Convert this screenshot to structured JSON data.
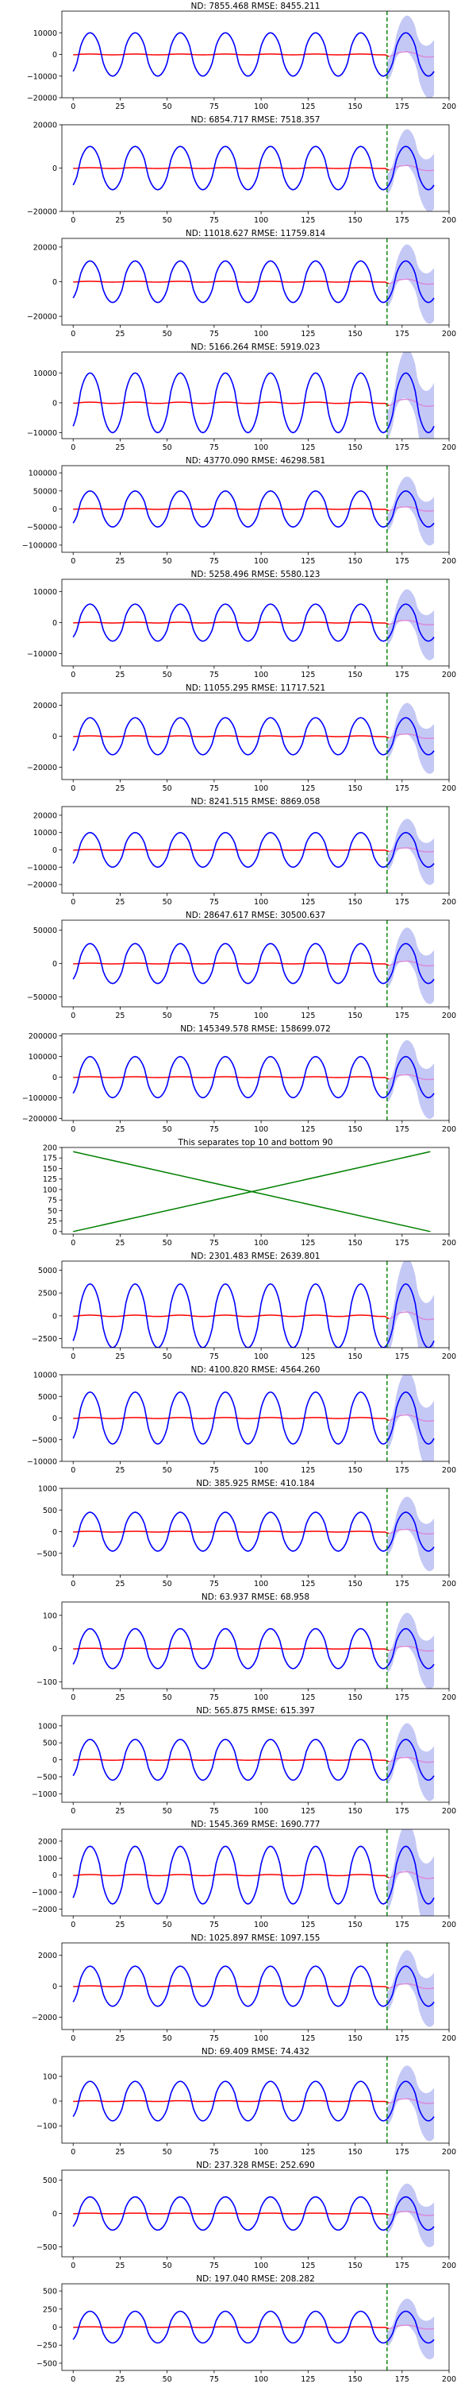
{
  "figure": {
    "colors": {
      "history": "#0000ff",
      "forecast": "#0000cc",
      "band": "#b0b6f2",
      "median": "#ff0000",
      "median_forecast": "#d98ad9",
      "split": "#008000",
      "cross": "#008000"
    }
  },
  "chart_data": [
    {
      "type": "line",
      "title": "ND:  7855.468 RMSE:  8455.211",
      "amp": 10000,
      "ylim": [
        -20000,
        20000
      ],
      "yticks": [
        -20000,
        -10000,
        0,
        10000
      ],
      "ytick_labels": [
        "−20000",
        "−10000",
        "0",
        "10000"
      ],
      "xlim": [
        -6,
        200
      ],
      "xticks": [
        0,
        25,
        50,
        75,
        100,
        125,
        150,
        175,
        200
      ],
      "split_x": 167,
      "series": [
        {
          "values_note": "periodic signal, period 24"
        }
      ]
    },
    {
      "type": "line",
      "title": "ND:  6854.717 RMSE:  7518.357",
      "amp": 10000,
      "ylim": [
        -20000,
        20000
      ],
      "yticks": [
        -20000,
        0,
        20000
      ],
      "ytick_labels": [
        "−20000",
        "0",
        "20000"
      ],
      "xlim": [
        -6,
        200
      ],
      "xticks": [
        0,
        25,
        50,
        75,
        100,
        125,
        150,
        175,
        200
      ],
      "split_x": 167
    },
    {
      "type": "line",
      "title": "ND:  11018.627 RMSE:  11759.814",
      "amp": 12000,
      "ylim": [
        -25000,
        25000
      ],
      "yticks": [
        -20000,
        0,
        20000
      ],
      "ytick_labels": [
        "−20000",
        "0",
        "20000"
      ],
      "xlim": [
        -6,
        200
      ],
      "xticks": [
        0,
        25,
        50,
        75,
        100,
        125,
        150,
        175,
        200
      ],
      "split_x": 167
    },
    {
      "type": "line",
      "title": "ND:  5166.264 RMSE:  5919.023",
      "amp": 10000,
      "ylim": [
        -12000,
        17000
      ],
      "yticks": [
        -10000,
        0,
        10000
      ],
      "ytick_labels": [
        "−10000",
        "0",
        "10000"
      ],
      "xlim": [
        -6,
        200
      ],
      "xticks": [
        0,
        25,
        50,
        75,
        100,
        125,
        150,
        175,
        200
      ],
      "split_x": 167
    },
    {
      "type": "line",
      "title": "ND:  43770.090 RMSE:  46298.581",
      "amp": 50000,
      "ylim": [
        -120000,
        120000
      ],
      "yticks": [
        -100000,
        -50000,
        0,
        50000,
        100000
      ],
      "ytick_labels": [
        "−100000",
        "−50000",
        "0",
        "50000",
        "100000"
      ],
      "xlim": [
        -6,
        200
      ],
      "xticks": [
        0,
        25,
        50,
        75,
        100,
        125,
        150,
        175,
        200
      ],
      "split_x": 167
    },
    {
      "type": "line",
      "title": "ND:  5258.496 RMSE:  5580.123",
      "amp": 6000,
      "ylim": [
        -14000,
        14000
      ],
      "yticks": [
        -10000,
        0,
        10000
      ],
      "ytick_labels": [
        "−10000",
        "0",
        "10000"
      ],
      "xlim": [
        -6,
        200
      ],
      "xticks": [
        0,
        25,
        50,
        75,
        100,
        125,
        150,
        175,
        200
      ],
      "split_x": 167
    },
    {
      "type": "line",
      "title": "ND:  11055.295 RMSE:  11717.521",
      "amp": 12000,
      "ylim": [
        -28000,
        28000
      ],
      "yticks": [
        -20000,
        0,
        20000
      ],
      "ytick_labels": [
        "−20000",
        "0",
        "20000"
      ],
      "xlim": [
        -6,
        200
      ],
      "xticks": [
        0,
        25,
        50,
        75,
        100,
        125,
        150,
        175,
        200
      ],
      "split_x": 167
    },
    {
      "type": "line",
      "title": "ND:  8241.515 RMSE:  8869.058",
      "amp": 10000,
      "ylim": [
        -25000,
        25000
      ],
      "yticks": [
        -20000,
        -10000,
        0,
        10000,
        20000
      ],
      "ytick_labels": [
        "−20000",
        "−10000",
        "0",
        "10000",
        "20000"
      ],
      "xlim": [
        -6,
        200
      ],
      "xticks": [
        0,
        25,
        50,
        75,
        100,
        125,
        150,
        175,
        200
      ],
      "split_x": 167
    },
    {
      "type": "line",
      "title": "ND:  28647.617 RMSE:  30500.637",
      "amp": 30000,
      "ylim": [
        -65000,
        65000
      ],
      "yticks": [
        -50000,
        0,
        50000
      ],
      "ytick_labels": [
        "−50000",
        "0",
        "50000"
      ],
      "xlim": [
        -6,
        200
      ],
      "xticks": [
        0,
        25,
        50,
        75,
        100,
        125,
        150,
        175,
        200
      ],
      "split_x": 167
    },
    {
      "type": "line",
      "title": "ND:  145349.578 RMSE:  158699.072",
      "amp": 100000,
      "ylim": [
        -210000,
        210000
      ],
      "yticks": [
        -200000,
        -100000,
        0,
        100000,
        200000
      ],
      "ytick_labels": [
        "−200000",
        "−100000",
        "0",
        "100000",
        "200000"
      ],
      "xlim": [
        -6,
        200
      ],
      "xticks": [
        0,
        25,
        50,
        75,
        100,
        125,
        150,
        175,
        200
      ],
      "split_x": 167
    },
    {
      "type": "cross",
      "title": "This separates top 10 and bottom 90",
      "ylim": [
        -6,
        200
      ],
      "yticks": [
        0,
        25,
        50,
        75,
        100,
        125,
        150,
        175,
        200
      ],
      "ytick_labels": [
        "0",
        "25",
        "50",
        "75",
        "100",
        "125",
        "150",
        "175",
        "200"
      ],
      "xlim": [
        -6,
        200
      ],
      "xticks": [
        0,
        25,
        50,
        75,
        100,
        125,
        150,
        175,
        200
      ],
      "lines": [
        {
          "x": [
            0,
            190
          ],
          "y": [
            0,
            190
          ]
        },
        {
          "x": [
            0,
            190
          ],
          "y": [
            190,
            0
          ]
        }
      ]
    },
    {
      "type": "line",
      "title": "ND:  2301.483 RMSE:  2639.801",
      "amp": 3500,
      "ylim": [
        -3500,
        6000
      ],
      "yticks": [
        -2500,
        0,
        2500,
        5000
      ],
      "ytick_labels": [
        "−2500",
        "0",
        "2500",
        "5000"
      ],
      "xlim": [
        -6,
        200
      ],
      "xticks": [
        0,
        25,
        50,
        75,
        100,
        125,
        150,
        175,
        200
      ],
      "split_x": 167
    },
    {
      "type": "line",
      "title": "ND:  4100.820 RMSE:  4564.260",
      "amp": 6000,
      "ylim": [
        -10000,
        10000
      ],
      "yticks": [
        -10000,
        -5000,
        0,
        5000,
        10000
      ],
      "ytick_labels": [
        "−10000",
        "−5000",
        "0",
        "5000",
        "10000"
      ],
      "xlim": [
        -6,
        200
      ],
      "xticks": [
        0,
        25,
        50,
        75,
        100,
        125,
        150,
        175,
        200
      ],
      "split_x": 167
    },
    {
      "type": "line",
      "title": "ND:  385.925 RMSE:  410.184",
      "amp": 450,
      "ylim": [
        -1000,
        1000
      ],
      "yticks": [
        -500,
        0,
        500,
        1000
      ],
      "ytick_labels": [
        "−500",
        "0",
        "500",
        "1000"
      ],
      "xlim": [
        -6,
        200
      ],
      "xticks": [
        0,
        25,
        50,
        75,
        100,
        125,
        150,
        175,
        200
      ],
      "split_x": 167
    },
    {
      "type": "line",
      "title": "ND:  63.937 RMSE:  68.958",
      "amp": 60,
      "ylim": [
        -120,
        140
      ],
      "yticks": [
        -100,
        0,
        100
      ],
      "ytick_labels": [
        "−100",
        "0",
        "100"
      ],
      "xlim": [
        -6,
        200
      ],
      "xticks": [
        0,
        25,
        50,
        75,
        100,
        125,
        150,
        175,
        200
      ],
      "split_x": 167
    },
    {
      "type": "line",
      "title": "ND:  565.875 RMSE:  615.397",
      "amp": 600,
      "ylim": [
        -1250,
        1300
      ],
      "yticks": [
        -1000,
        -500,
        0,
        500,
        1000
      ],
      "ytick_labels": [
        "−1000",
        "−500",
        "0",
        "500",
        "1000"
      ],
      "xlim": [
        -6,
        200
      ],
      "xticks": [
        0,
        25,
        50,
        75,
        100,
        125,
        150,
        175,
        200
      ],
      "split_x": 167
    },
    {
      "type": "line",
      "title": "ND:  1545.369 RMSE:  1690.777",
      "amp": 1700,
      "ylim": [
        -2400,
        2700
      ],
      "yticks": [
        -2000,
        -1000,
        0,
        1000,
        2000
      ],
      "ytick_labels": [
        "−2000",
        "−1000",
        "0",
        "1000",
        "2000"
      ],
      "xlim": [
        -6,
        200
      ],
      "xticks": [
        0,
        25,
        50,
        75,
        100,
        125,
        150,
        175,
        200
      ],
      "split_x": 167
    },
    {
      "type": "line",
      "title": "ND:  1025.897 RMSE:  1097.155",
      "amp": 1300,
      "ylim": [
        -2800,
        2800
      ],
      "yticks": [
        -2000,
        0,
        2000
      ],
      "ytick_labels": [
        "−2000",
        "0",
        "2000"
      ],
      "xlim": [
        -6,
        200
      ],
      "xticks": [
        0,
        25,
        50,
        75,
        100,
        125,
        150,
        175,
        200
      ],
      "split_x": 167
    },
    {
      "type": "line",
      "title": "ND:  69.409 RMSE:  74.432",
      "amp": 80,
      "ylim": [
        -170,
        180
      ],
      "yticks": [
        -100,
        0,
        100
      ],
      "ytick_labels": [
        "−100",
        "0",
        "100"
      ],
      "xlim": [
        -6,
        200
      ],
      "xticks": [
        0,
        25,
        50,
        75,
        100,
        125,
        150,
        175,
        200
      ],
      "split_x": 167
    },
    {
      "type": "line",
      "title": "ND:  237.328 RMSE:  252.690",
      "amp": 250,
      "ylim": [
        -650,
        650
      ],
      "yticks": [
        -500,
        0,
        500
      ],
      "ytick_labels": [
        "−500",
        "0",
        "500"
      ],
      "xlim": [
        -6,
        200
      ],
      "xticks": [
        0,
        25,
        50,
        75,
        100,
        125,
        150,
        175,
        200
      ],
      "split_x": 167
    },
    {
      "type": "line",
      "title": "ND:  197.040 RMSE:  208.282",
      "amp": 220,
      "ylim": [
        -600,
        600
      ],
      "yticks": [
        -500,
        -250,
        0,
        250,
        500
      ],
      "ytick_labels": [
        "−500",
        "−250",
        "0",
        "250",
        "500"
      ],
      "xlim": [
        -6,
        200
      ],
      "xticks": [
        0,
        25,
        50,
        75,
        100,
        125,
        150,
        175,
        200
      ],
      "split_x": 167
    }
  ]
}
